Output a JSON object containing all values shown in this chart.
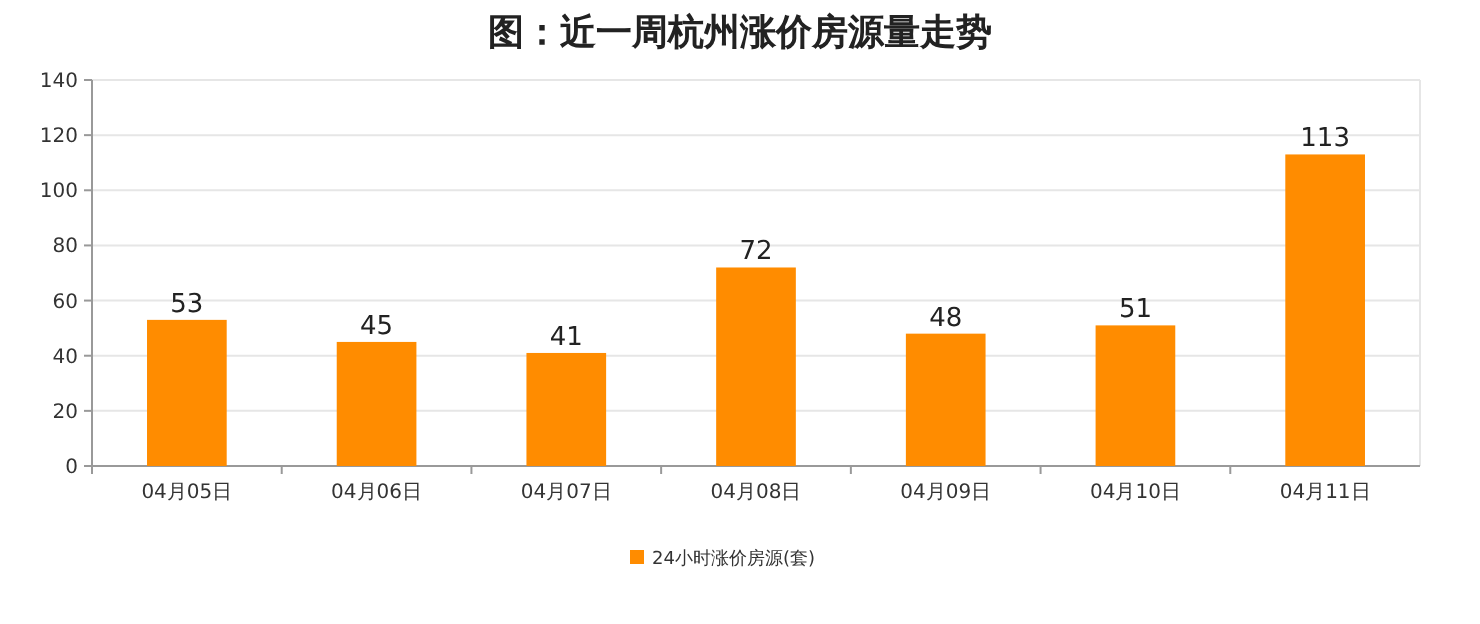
{
  "chart_data": {
    "type": "bar",
    "title": "图：近一周杭州涨价房源量走势",
    "categories": [
      "04月05日",
      "04月06日",
      "04月07日",
      "04月08日",
      "04月09日",
      "04月10日",
      "04月11日"
    ],
    "series": [
      {
        "name": "24小时涨价房源(套)",
        "color": "#ff8c00",
        "values": [
          53,
          45,
          41,
          72,
          48,
          51,
          113
        ]
      }
    ],
    "ylim": [
      0,
      140
    ],
    "yticks": [
      0,
      20,
      40,
      60,
      80,
      100,
      120,
      140
    ],
    "grid": "y",
    "legend": "bottom",
    "data_labels": true
  }
}
